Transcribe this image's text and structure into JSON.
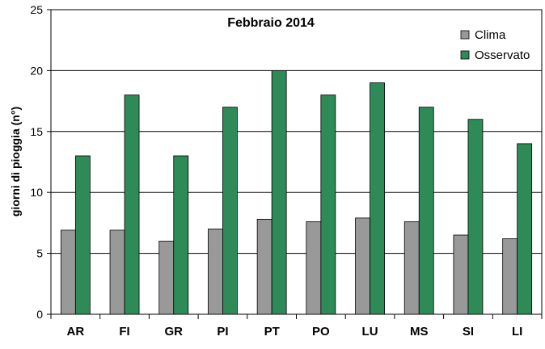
{
  "chart_data": {
    "type": "bar",
    "title": "Febbraio 2014",
    "ylabel": "giorni di pioggia  (n°)",
    "xlabel": "",
    "ylim": [
      0,
      25
    ],
    "yticks": [
      0,
      5,
      10,
      15,
      20,
      25
    ],
    "grid": true,
    "legend_position": "top-right",
    "categories": [
      "AR",
      "FI",
      "GR",
      "PI",
      "PT",
      "PO",
      "LU",
      "MS",
      "SI",
      "LI"
    ],
    "series": [
      {
        "name": "Clima",
        "color": "#999999",
        "values": [
          6.9,
          6.9,
          6.0,
          7.0,
          7.8,
          7.6,
          7.9,
          7.6,
          6.5,
          6.2
        ]
      },
      {
        "name": "Osservato",
        "color": "#2e8b57",
        "values": [
          13,
          18,
          13,
          17,
          20,
          18,
          19,
          17,
          16,
          14
        ]
      }
    ]
  }
}
